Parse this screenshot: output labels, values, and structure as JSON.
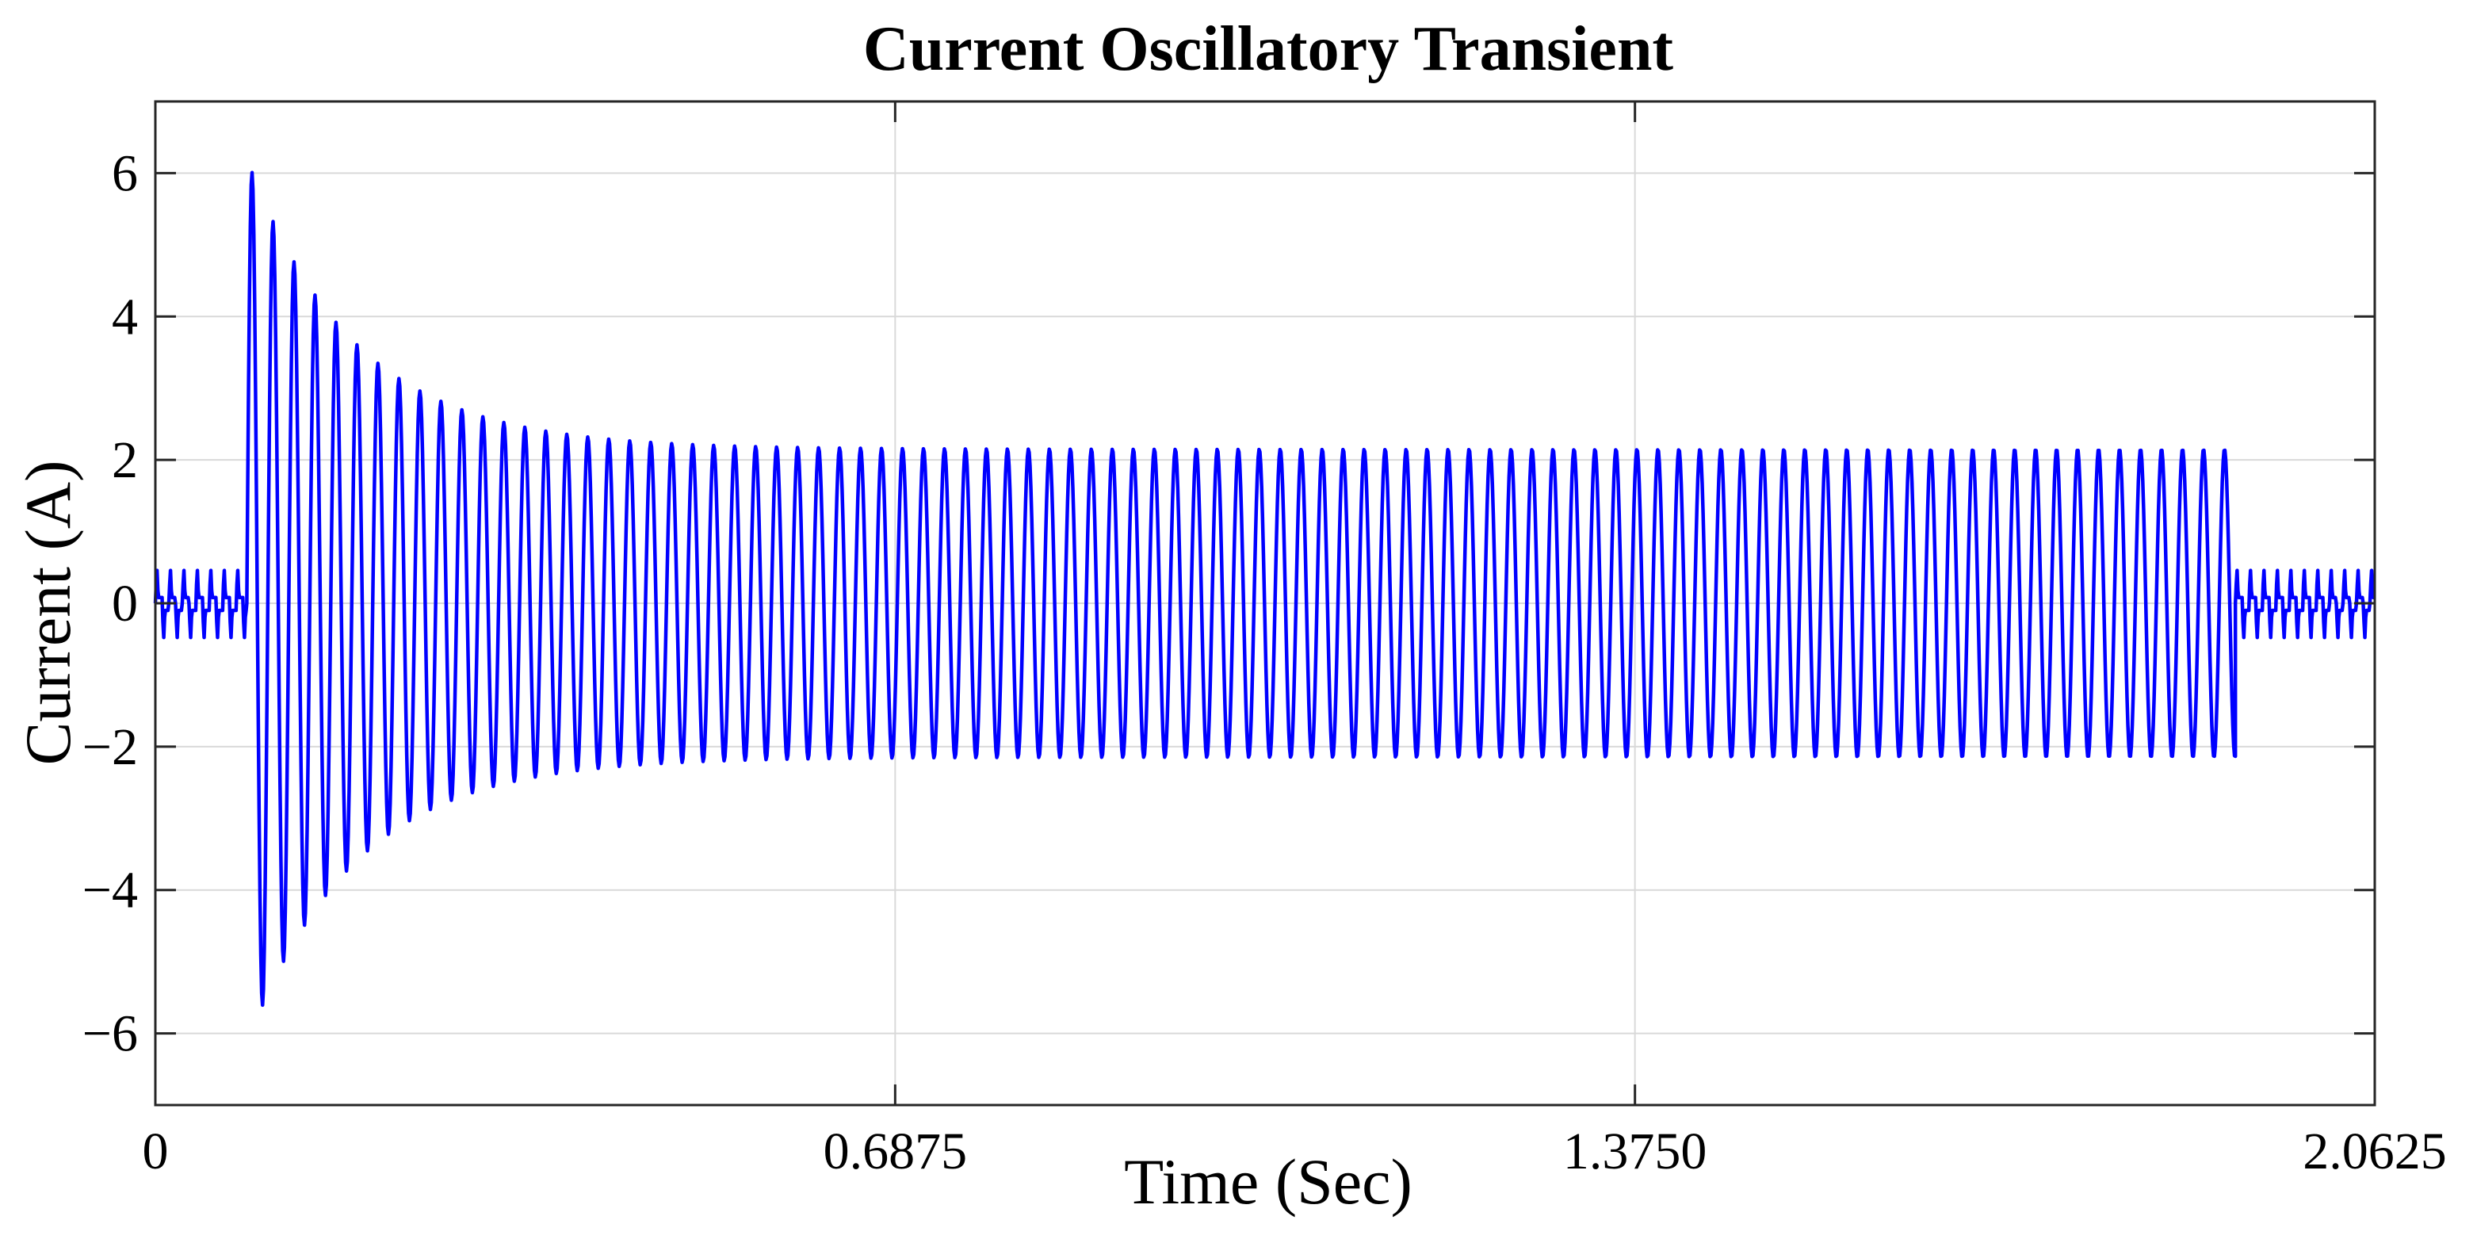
{
  "chart_data": {
    "type": "line",
    "title": "Current Oscillatory Transient",
    "xlabel": "Time (Sec)",
    "ylabel": "Current (A)",
    "xlim": [
      0,
      2.0625
    ],
    "ylim": [
      -7,
      7
    ],
    "x_ticks": [
      0,
      0.6875,
      1.375,
      2.0625
    ],
    "x_tick_labels": [
      "0",
      "0.6875",
      "1.3750",
      "2.0625"
    ],
    "y_ticks": [
      -6,
      -4,
      -2,
      0,
      2,
      4,
      6
    ],
    "y_tick_labels": [
      "−6",
      "−4",
      "−2",
      "0",
      "2",
      "4",
      "6"
    ],
    "grid": true,
    "legend": "none",
    "series": [
      {
        "color": "#0000ff",
        "segments": [
          {
            "kind": "steady",
            "x_start": 0,
            "x_end": 0.085,
            "peak_positive": 0.5,
            "peak_negative": -0.5,
            "period": 0.0125
          },
          {
            "kind": "decaying_oscillation",
            "x_start": 0.085,
            "x_end": 1.933,
            "initial_peak_positive": 6.2,
            "initial_peak_negative": -6.15,
            "steady_amplitude": 2.15,
            "decay_time_constant": 0.1,
            "period": 0.0195
          },
          {
            "kind": "steady",
            "x_start": 1.933,
            "x_end": 2.0625,
            "peak_positive": 0.5,
            "peak_negative": -0.5,
            "period": 0.0125
          }
        ],
        "key_points": [
          {
            "x": 0.092,
            "y": 6.2
          },
          {
            "x": 0.101,
            "y": -6.15
          },
          {
            "x": 0.111,
            "y": 4.6
          },
          {
            "x": 0.12,
            "y": -4.75
          },
          {
            "x": 0.131,
            "y": 4.1
          },
          {
            "x": 0.14,
            "y": -4.05
          },
          {
            "x": 1.92,
            "y": 2.15
          },
          {
            "x": 1.93,
            "y": -2.15
          },
          {
            "x": 1.94,
            "y": 0.55
          },
          {
            "x": 1.95,
            "y": -1.0
          }
        ]
      }
    ]
  }
}
